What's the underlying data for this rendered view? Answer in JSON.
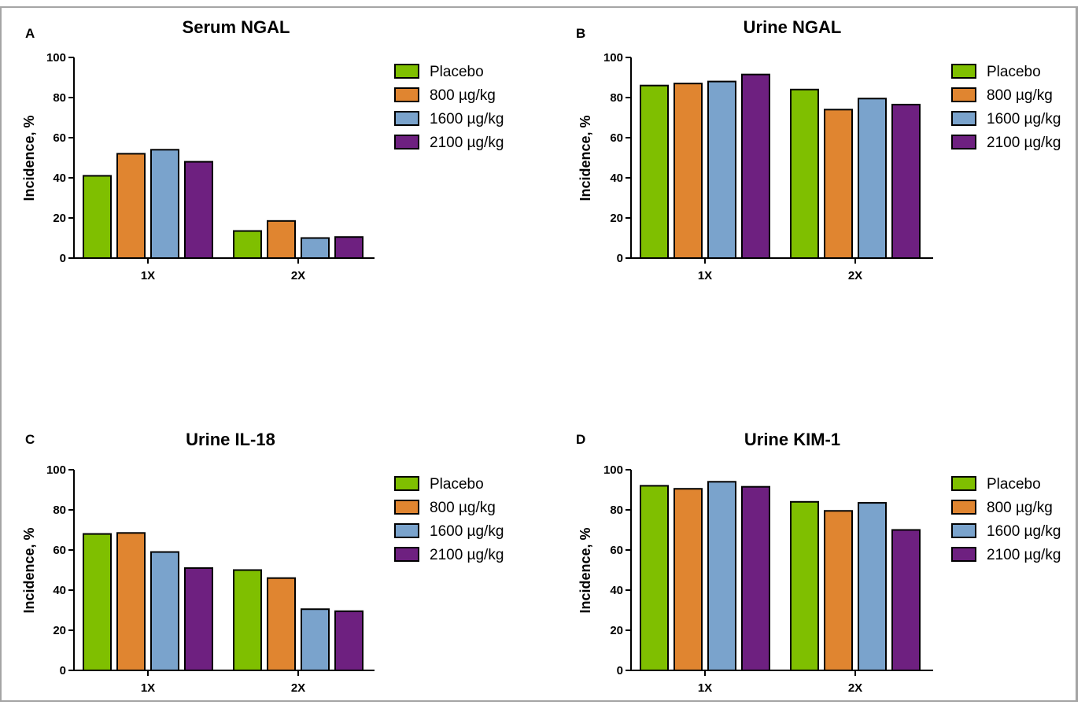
{
  "chart_data": [
    {
      "type": "bar",
      "panel_letter": "A",
      "title": "Serum NGAL",
      "xlabel": "",
      "ylabel": "Incidence, %",
      "ylim": [
        0,
        100
      ],
      "yticks": [
        "0",
        "20",
        "40",
        "60",
        "80",
        "100"
      ],
      "categories": [
        "1X",
        "2X"
      ],
      "legend_position": "right",
      "series": [
        {
          "name": "Placebo",
          "color": "#7fbf00",
          "values": [
            41,
            13.5
          ]
        },
        {
          "name": "800 µg/kg",
          "color": "#e08530",
          "values": [
            52,
            18.5
          ]
        },
        {
          "name": "1600 µg/kg",
          "color": "#7aa3cc",
          "values": [
            54,
            10
          ]
        },
        {
          "name": "2100 µg/kg",
          "color": "#6e2080",
          "values": [
            48,
            10.5
          ]
        }
      ]
    },
    {
      "type": "bar",
      "panel_letter": "B",
      "title": "Urine NGAL",
      "xlabel": "",
      "ylabel": "Incidence, %",
      "ylim": [
        0,
        100
      ],
      "yticks": [
        "0",
        "20",
        "40",
        "60",
        "80",
        "100"
      ],
      "categories": [
        "1X",
        "2X"
      ],
      "legend_position": "right",
      "series": [
        {
          "name": "Placebo",
          "color": "#7fbf00",
          "values": [
            86,
            84
          ]
        },
        {
          "name": "800 µg/kg",
          "color": "#e08530",
          "values": [
            87,
            74
          ]
        },
        {
          "name": "1600 µg/kg",
          "color": "#7aa3cc",
          "values": [
            88,
            79.5
          ]
        },
        {
          "name": "2100 µg/kg",
          "color": "#6e2080",
          "values": [
            91.5,
            76.5
          ]
        }
      ]
    },
    {
      "type": "bar",
      "panel_letter": "C",
      "title": "Urine IL-18",
      "xlabel": "",
      "ylabel": "Incidence, %",
      "ylim": [
        0,
        100
      ],
      "yticks": [
        "0",
        "20",
        "40",
        "60",
        "80",
        "100"
      ],
      "categories": [
        "1X",
        "2X"
      ],
      "legend_position": "right",
      "series": [
        {
          "name": "Placebo",
          "color": "#7fbf00",
          "values": [
            68,
            50
          ]
        },
        {
          "name": "800 µg/kg",
          "color": "#e08530",
          "values": [
            68.5,
            46
          ]
        },
        {
          "name": "1600 µg/kg",
          "color": "#7aa3cc",
          "values": [
            59,
            30.5
          ]
        },
        {
          "name": "2100 µg/kg",
          "color": "#6e2080",
          "values": [
            51,
            29.5
          ]
        }
      ]
    },
    {
      "type": "bar",
      "panel_letter": "D",
      "title": "Urine KIM-1",
      "xlabel": "",
      "ylabel": "Incidence, %",
      "ylim": [
        0,
        100
      ],
      "yticks": [
        "0",
        "20",
        "40",
        "60",
        "80",
        "100"
      ],
      "categories": [
        "1X",
        "2X"
      ],
      "legend_position": "right",
      "series": [
        {
          "name": "Placebo",
          "color": "#7fbf00",
          "values": [
            92,
            84
          ]
        },
        {
          "name": "800 µg/kg",
          "color": "#e08530",
          "values": [
            90.5,
            79.5
          ]
        },
        {
          "name": "1600 µg/kg",
          "color": "#7aa3cc",
          "values": [
            94,
            83.5
          ]
        },
        {
          "name": "2100 µg/kg",
          "color": "#6e2080",
          "values": [
            91.5,
            70
          ]
        }
      ]
    }
  ]
}
